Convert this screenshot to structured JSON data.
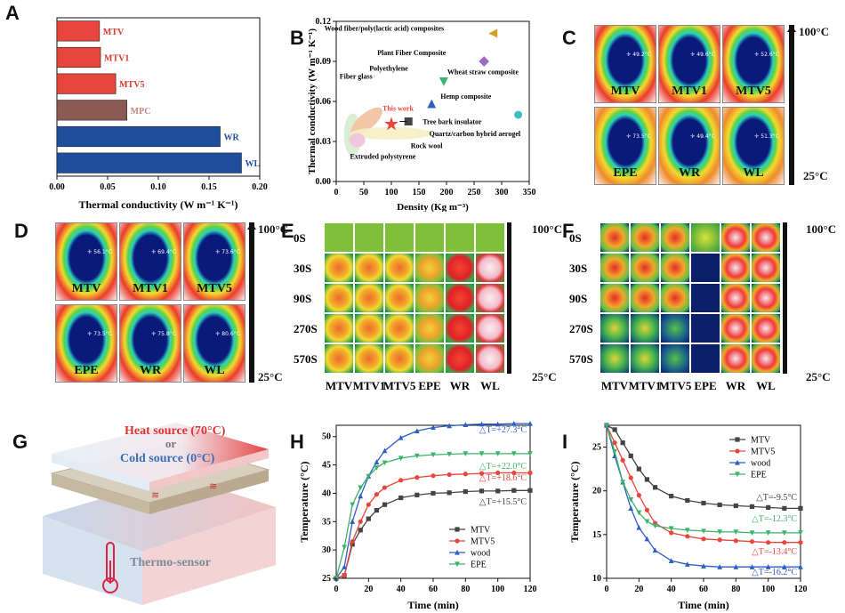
{
  "panels": {
    "a": "A",
    "b": "B",
    "c": "C",
    "d": "D",
    "e": "E",
    "f": "F",
    "g": "G",
    "h": "H",
    "i": "I"
  },
  "chart_a": {
    "type": "bar",
    "orientation": "horizontal",
    "categories": [
      "MTV",
      "MTV1",
      "MTV5",
      "MPC",
      "WR",
      "WL"
    ],
    "values": [
      0.042,
      0.043,
      0.058,
      0.069,
      0.161,
      0.182
    ],
    "colors": [
      "#e8453c",
      "#e8453c",
      "#e8453c",
      "#8b5a52",
      "#1f4e9f",
      "#1f4e9f"
    ],
    "label_colors": [
      "#d93a2f",
      "#d93a2f",
      "#d93a2f",
      "#c08a80",
      "#1f4e9f",
      "#1f4e9f"
    ],
    "xlabel": "Thermal conductivity (W m⁻¹ K⁻¹)",
    "xticks": [
      "0.00",
      "0.05",
      "0.10",
      "0.15",
      "0.20"
    ],
    "xlim": [
      0,
      0.2
    ]
  },
  "chart_b": {
    "type": "scatter",
    "xlabel": "Density (Kg m⁻³)",
    "ylabel": "Thermal conductivity (W m⁻¹ K⁻¹)",
    "xlim": [
      0,
      350
    ],
    "ylim": [
      0,
      0.12
    ],
    "xticks": [
      "0",
      "50",
      "100",
      "150",
      "200",
      "250",
      "300",
      "350"
    ],
    "yticks": [
      "0.00",
      "0.03",
      "0.06",
      "0.09",
      "0.12"
    ],
    "points": [
      {
        "name": "Wood fiber/poly(lactic acid) composites",
        "x": 285,
        "y": 0.111,
        "marker": "triangle-left",
        "color": "#d4a02a"
      },
      {
        "name": "Plant Fiber Composite",
        "x": 268,
        "y": 0.09,
        "marker": "diamond",
        "color": "#9b6cc4"
      },
      {
        "name": "Wheat straw composite",
        "x": 195,
        "y": 0.075,
        "marker": "triangle-down",
        "color": "#3cb36c"
      },
      {
        "name": "Hemp composite",
        "x": 173,
        "y": 0.058,
        "marker": "triangle-up",
        "color": "#2f5fc2"
      },
      {
        "name": "Tree bark insulator",
        "x": 131,
        "y": 0.045,
        "marker": "square",
        "color": "#444444"
      },
      {
        "name": "Quartz/carbon hybrid aerogel",
        "x": 330,
        "y": 0.05,
        "marker": "circle",
        "color": "#3bbfc4"
      },
      {
        "name": "This work",
        "x": 100,
        "y": 0.043,
        "marker": "star",
        "color": "#e8453c"
      }
    ],
    "regions": [
      "Fiber glass",
      "Polyethylene",
      "Rock wool",
      "Extruded polystyrene"
    ],
    "this_work_label": "This work"
  },
  "panel_c": {
    "samples": [
      {
        "name": "MTV",
        "temp": "49.2°C"
      },
      {
        "name": "MTV1",
        "temp": "49.6°C"
      },
      {
        "name": "MTV5",
        "temp": "52.6°C"
      },
      {
        "name": "EPE",
        "temp": "73.5°C"
      },
      {
        "name": "WR",
        "temp": "49.4°C"
      },
      {
        "name": "WL",
        "temp": "51.3°C"
      }
    ],
    "scale_max": "100°C",
    "scale_min": "25°C"
  },
  "panel_d": {
    "samples": [
      {
        "name": "MTV",
        "temp": "56.1°C"
      },
      {
        "name": "MTV1",
        "temp": "69.4°C"
      },
      {
        "name": "MTV5",
        "temp": "73.6°C"
      },
      {
        "name": "EPE",
        "temp": "73.5°C"
      },
      {
        "name": "WR",
        "temp": "75.8°C"
      },
      {
        "name": "WL",
        "temp": "80.6°C"
      }
    ],
    "scale_max": "100°C",
    "scale_min": "25°C"
  },
  "panel_e": {
    "times": [
      "0S",
      "30S",
      "90S",
      "270S",
      "570S"
    ],
    "samples": [
      "MTV",
      "MTV1",
      "MTV5",
      "EPE",
      "WR",
      "WL"
    ],
    "scale_max": "100°C",
    "scale_min": "25°C"
  },
  "panel_f": {
    "times": [
      "0S",
      "30S",
      "90S",
      "270S",
      "570S"
    ],
    "samples": [
      "MTV",
      "MTV1",
      "MTV5",
      "EPE",
      "WR",
      "WL"
    ],
    "scale_max": "100°C",
    "scale_min": "25°C"
  },
  "panel_g": {
    "heat_source": "Heat source (70°C)",
    "or": "or",
    "cold_source": "Cold source (0°C)",
    "sensor": "Thermo-sensor"
  },
  "chart_h": {
    "type": "line",
    "xlabel": "Time (min)",
    "ylabel": "Temperature (°C)",
    "xlim": [
      0,
      120
    ],
    "ylim": [
      25,
      52
    ],
    "xticks": [
      "0",
      "20",
      "40",
      "60",
      "80",
      "100",
      "120"
    ],
    "yticks": [
      "25",
      "30",
      "35",
      "40",
      "45",
      "50"
    ],
    "x": [
      0,
      5,
      10,
      15,
      20,
      25,
      30,
      40,
      50,
      60,
      70,
      80,
      90,
      100,
      110,
      120
    ],
    "series": [
      {
        "name": "MTV",
        "color": "#444444",
        "marker": "square",
        "values": [
          25,
          25.5,
          31,
          33.5,
          35.5,
          37,
          38,
          39.2,
          39.7,
          40,
          40.1,
          40.3,
          40.4,
          40.4,
          40.5,
          40.5
        ]
      },
      {
        "name": "MTV5",
        "color": "#e8453c",
        "marker": "circle",
        "values": [
          25,
          25.5,
          31.5,
          35,
          38,
          39.8,
          41,
          42.3,
          42.8,
          43.1,
          43.3,
          43.4,
          43.5,
          43.6,
          43.6,
          43.6
        ]
      },
      {
        "name": "wood",
        "color": "#2f5fc2",
        "marker": "triangle-up",
        "values": [
          25,
          27,
          35,
          39.5,
          43,
          45.5,
          47.5,
          49.8,
          51,
          51.6,
          51.9,
          52.1,
          52.2,
          52.2,
          52.3,
          52.3
        ]
      },
      {
        "name": "EPE",
        "color": "#3cb36c",
        "marker": "triangle-down",
        "values": [
          25,
          30.5,
          38,
          41,
          43,
          44.5,
          45.4,
          46.2,
          46.6,
          46.8,
          46.9,
          47,
          47,
          47,
          47,
          47
        ]
      }
    ],
    "annotations": [
      {
        "text": "△T=+27.3°C",
        "color": "#2f5fc2"
      },
      {
        "text": "△T=+22.0°C",
        "color": "#3cb36c"
      },
      {
        "text": "△T=+18.6°C",
        "color": "#e8453c"
      },
      {
        "text": "△T=+15.5°C",
        "color": "#444444"
      }
    ]
  },
  "chart_i": {
    "type": "line",
    "xlabel": "Time (min)",
    "ylabel": "Temperature (°C)",
    "xlim": [
      0,
      120
    ],
    "ylim": [
      10,
      27.5
    ],
    "xticks": [
      "0",
      "20",
      "40",
      "60",
      "80",
      "100",
      "120"
    ],
    "yticks": [
      "10",
      "15",
      "20",
      "25"
    ],
    "x": [
      0,
      5,
      10,
      15,
      20,
      25,
      30,
      40,
      50,
      60,
      70,
      80,
      90,
      100,
      110,
      120
    ],
    "series": [
      {
        "name": "MTV",
        "color": "#444444",
        "marker": "square",
        "values": [
          27.5,
          27,
          25.5,
          24,
          22.5,
          21.3,
          20.4,
          19.4,
          18.9,
          18.6,
          18.4,
          18.3,
          18.2,
          18.1,
          18,
          18
        ]
      },
      {
        "name": "MTV5",
        "color": "#e8453c",
        "marker": "circle",
        "values": [
          27.5,
          25.5,
          23.5,
          21.5,
          19.5,
          17.8,
          16.3,
          15.2,
          14.8,
          14.5,
          14.4,
          14.3,
          14.2,
          14.1,
          14.1,
          14.1
        ]
      },
      {
        "name": "wood",
        "color": "#2f5fc2",
        "marker": "triangle-up",
        "values": [
          27.5,
          24,
          21,
          18,
          15.8,
          14.5,
          13.2,
          12,
          11.6,
          11.4,
          11.3,
          11.3,
          11.3,
          11.3,
          11.3,
          11.3
        ]
      },
      {
        "name": "EPE",
        "color": "#3cb36c",
        "marker": "triangle-down",
        "values": [
          27.5,
          24.5,
          21,
          19,
          17.5,
          16.5,
          16,
          15.7,
          15.5,
          15.4,
          15.3,
          15.3,
          15.2,
          15.2,
          15.2,
          15.2
        ]
      }
    ],
    "annotations": [
      {
        "text": "△T=-9.5°C",
        "color": "#444444"
      },
      {
        "text": "△T=-12.3°C",
        "color": "#3cb36c"
      },
      {
        "text": "△T=-13.4°C",
        "color": "#e8453c"
      },
      {
        "text": "△T=-16.2°C",
        "color": "#2f5fc2"
      }
    ]
  }
}
